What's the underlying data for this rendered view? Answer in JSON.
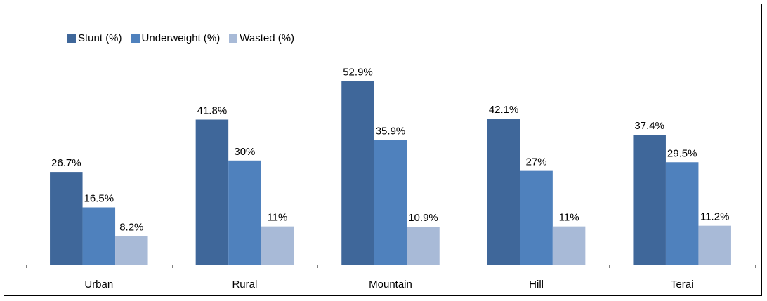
{
  "chart_data": {
    "type": "bar",
    "categories": [
      "Urban",
      "Rural",
      "Mountain",
      "Hill",
      "Terai"
    ],
    "series": [
      {
        "name": "Stunt (%)",
        "values": [
          26.7,
          41.8,
          52.9,
          42.1,
          37.4
        ],
        "labels": [
          "26.7%",
          "41.8%",
          "52.9%",
          "42.1%",
          "37.4%"
        ],
        "color": "#3F679A"
      },
      {
        "name": "Underweight (%)",
        "values": [
          16.5,
          30,
          35.9,
          27,
          29.5
        ],
        "labels": [
          "16.5%",
          "30%",
          "35.9%",
          "27%",
          "29.5%"
        ],
        "color": "#4F81BD"
      },
      {
        "name": "Wasted (%)",
        "values": [
          8.2,
          11,
          10.9,
          11,
          11.2
        ],
        "labels": [
          "8.2%",
          "11%",
          "10.9%",
          "11%",
          "11.2%"
        ],
        "color": "#A8BAD7"
      }
    ],
    "title": "",
    "xlabel": "",
    "ylabel": "",
    "ylim": [
      0,
      55
    ],
    "grid": false,
    "legend_position": "top-left"
  }
}
